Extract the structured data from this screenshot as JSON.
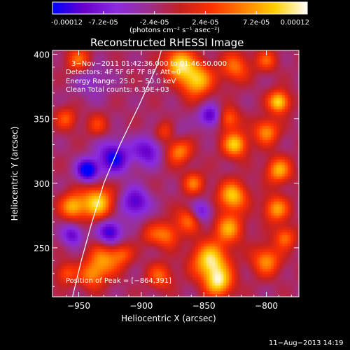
{
  "chart_data": {
    "type": "heatmap",
    "title": "Reconstructed RHESSI Image",
    "colorbar": {
      "min": -0.00012,
      "max": 0.00012,
      "tick_labels": [
        "-0.00012",
        "-7.2e-05",
        "-2.4e-05",
        "2.4e-05",
        "7.2e-05",
        "0.00012"
      ],
      "tick_values": [
        -0.00012,
        -7.2e-05,
        -2.4e-05,
        2.4e-05,
        7.2e-05,
        0.00012
      ],
      "units_label": "(photons cm⁻² s⁻¹ asec⁻²)",
      "colors": [
        "#0000ff",
        "#6a00cc",
        "#8a2be2",
        "#9a2f8f",
        "#c42020",
        "#ff3000",
        "#ff8000",
        "#ffd000",
        "#ffffff"
      ]
    },
    "xlabel": "Heliocentric X (arcsec)",
    "ylabel": "Heliocentric Y (arcsec)",
    "xlim": [
      -971,
      -774
    ],
    "ylim": [
      212,
      403
    ],
    "x_ticks": [
      -950,
      -900,
      -850,
      -800
    ],
    "x_tick_labels": [
      "−950",
      "−900",
      "−850",
      "−800"
    ],
    "y_ticks": [
      250,
      300,
      350,
      400
    ],
    "y_tick_labels": [
      "250",
      "300",
      "350",
      "400"
    ],
    "limb_curve": [
      [
        -955,
        212
      ],
      [
        -948,
        240
      ],
      [
        -940,
        268
      ],
      [
        -930,
        300
      ],
      [
        -917,
        330
      ],
      [
        -902,
        360
      ],
      [
        -888,
        390
      ],
      [
        -884,
        403
      ]
    ],
    "peak": [
      -864,
      391
    ],
    "blobs": [
      {
        "x": -943,
        "y": 310,
        "v": -1.0,
        "s": 6
      },
      {
        "x": -922,
        "y": 320,
        "v": -0.8,
        "s": 9
      },
      {
        "x": -905,
        "y": 285,
        "v": -0.7,
        "s": 8
      },
      {
        "x": -925,
        "y": 262,
        "v": -0.8,
        "s": 7
      },
      {
        "x": -895,
        "y": 325,
        "v": -0.6,
        "s": 8
      },
      {
        "x": -845,
        "y": 352,
        "v": -0.7,
        "s": 6
      },
      {
        "x": -852,
        "y": 278,
        "v": -0.6,
        "s": 6
      },
      {
        "x": -955,
        "y": 260,
        "v": -0.6,
        "s": 6
      },
      {
        "x": -875,
        "y": 340,
        "v": -0.4,
        "s": 7
      },
      {
        "x": -940,
        "y": 380,
        "v": -0.3,
        "s": 10
      },
      {
        "x": -935,
        "y": 285,
        "v": 0.95,
        "s": 9
      },
      {
        "x": -955,
        "y": 282,
        "v": 0.8,
        "s": 7
      },
      {
        "x": -930,
        "y": 240,
        "v": 0.7,
        "s": 9
      },
      {
        "x": -940,
        "y": 228,
        "v": 0.55,
        "s": 7
      },
      {
        "x": -885,
        "y": 228,
        "v": 0.55,
        "s": 7
      },
      {
        "x": -880,
        "y": 260,
        "v": 0.6,
        "s": 7
      },
      {
        "x": -862,
        "y": 272,
        "v": 0.6,
        "s": 7
      },
      {
        "x": -845,
        "y": 240,
        "v": 1.0,
        "s": 10
      },
      {
        "x": -838,
        "y": 223,
        "v": 0.9,
        "s": 8
      },
      {
        "x": -827,
        "y": 290,
        "v": 0.9,
        "s": 8
      },
      {
        "x": -830,
        "y": 265,
        "v": 0.75,
        "s": 8
      },
      {
        "x": -825,
        "y": 330,
        "v": 0.9,
        "s": 7
      },
      {
        "x": -830,
        "y": 350,
        "v": 0.6,
        "s": 6
      },
      {
        "x": -800,
        "y": 340,
        "v": 0.7,
        "s": 7
      },
      {
        "x": -790,
        "y": 310,
        "v": 0.8,
        "s": 7
      },
      {
        "x": -792,
        "y": 280,
        "v": 0.75,
        "s": 7
      },
      {
        "x": -800,
        "y": 240,
        "v": 0.7,
        "s": 8
      },
      {
        "x": -785,
        "y": 258,
        "v": 0.6,
        "s": 6
      },
      {
        "x": -870,
        "y": 325,
        "v": 0.7,
        "s": 7
      },
      {
        "x": -880,
        "y": 340,
        "v": 0.65,
        "s": 6
      },
      {
        "x": -858,
        "y": 300,
        "v": 0.6,
        "s": 6
      },
      {
        "x": -856,
        "y": 380,
        "v": 0.95,
        "s": 9
      },
      {
        "x": -870,
        "y": 393,
        "v": 0.95,
        "s": 8
      },
      {
        "x": -825,
        "y": 390,
        "v": 0.6,
        "s": 8
      },
      {
        "x": -790,
        "y": 363,
        "v": 1.0,
        "s": 6
      },
      {
        "x": -800,
        "y": 395,
        "v": 0.5,
        "s": 6
      },
      {
        "x": -960,
        "y": 350,
        "v": 0.5,
        "s": 6
      },
      {
        "x": -950,
        "y": 395,
        "v": 0.6,
        "s": 7
      },
      {
        "x": -935,
        "y": 345,
        "v": 0.4,
        "s": 6
      },
      {
        "x": -893,
        "y": 260,
        "v": 0.3,
        "s": 6
      },
      {
        "x": -915,
        "y": 245,
        "v": 0.45,
        "s": 6
      },
      {
        "x": -960,
        "y": 230,
        "v": 0.5,
        "s": 6
      }
    ]
  },
  "annotations": {
    "time_range": "3−Nov−2011 01:42:36.000 to 01:46:50.000",
    "detectors": "Detectors: 4F 5F 6F 7F 8F, Att=0",
    "energy": "Energy Range: 25.0 − 50.0 keV",
    "clean": "Clean    Total counts: 6.39E+03",
    "peak": "Position of Peak = [−864,391]"
  },
  "footer": {
    "timestamp": "11−Aug−2013 14:19"
  }
}
